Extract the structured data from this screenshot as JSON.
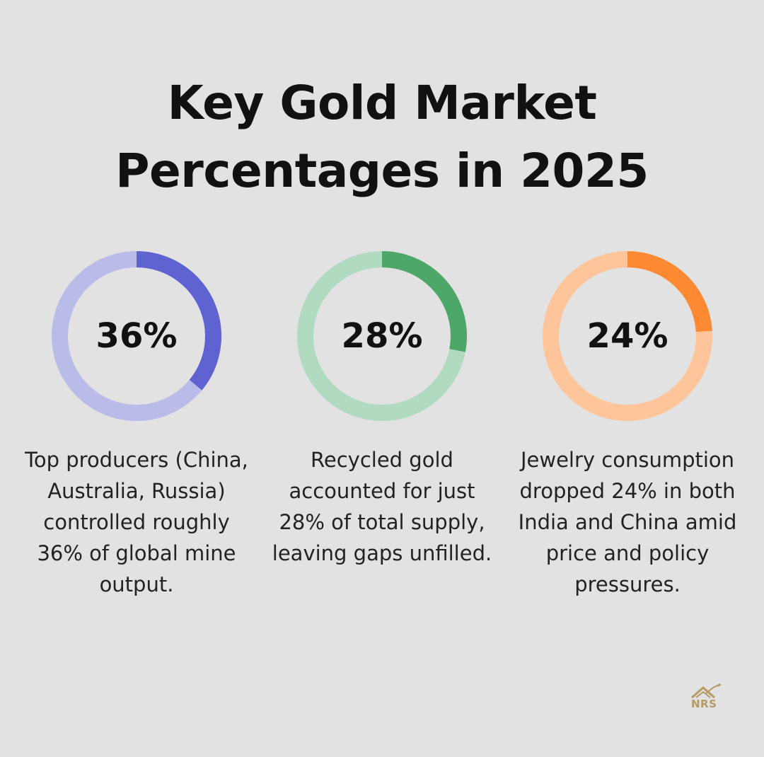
{
  "title": {
    "line1": "Key Gold Market",
    "line2": "Percentages in 2025"
  },
  "chart_data": {
    "type": "donut",
    "items": [
      {
        "value": 36,
        "label": "36%",
        "description": "Top producers (China, Australia, Russia) controlled roughly 36% of global mine output.",
        "color": "#5f63d2",
        "track_color": "#b9bbe9"
      },
      {
        "value": 28,
        "label": "28%",
        "description": "Recycled gold accounted for just 28% of total supply, leaving gaps unfilled.",
        "color": "#4ca769",
        "track_color": "#b1dbc1"
      },
      {
        "value": 24,
        "label": "24%",
        "description": "Jewelry consumption dropped 24% in both India and China amid price and policy pressures.",
        "color": "#fd8a33",
        "track_color": "#fec59b"
      }
    ]
  },
  "logo": {
    "text": "NRS",
    "color": "#b69a62"
  }
}
